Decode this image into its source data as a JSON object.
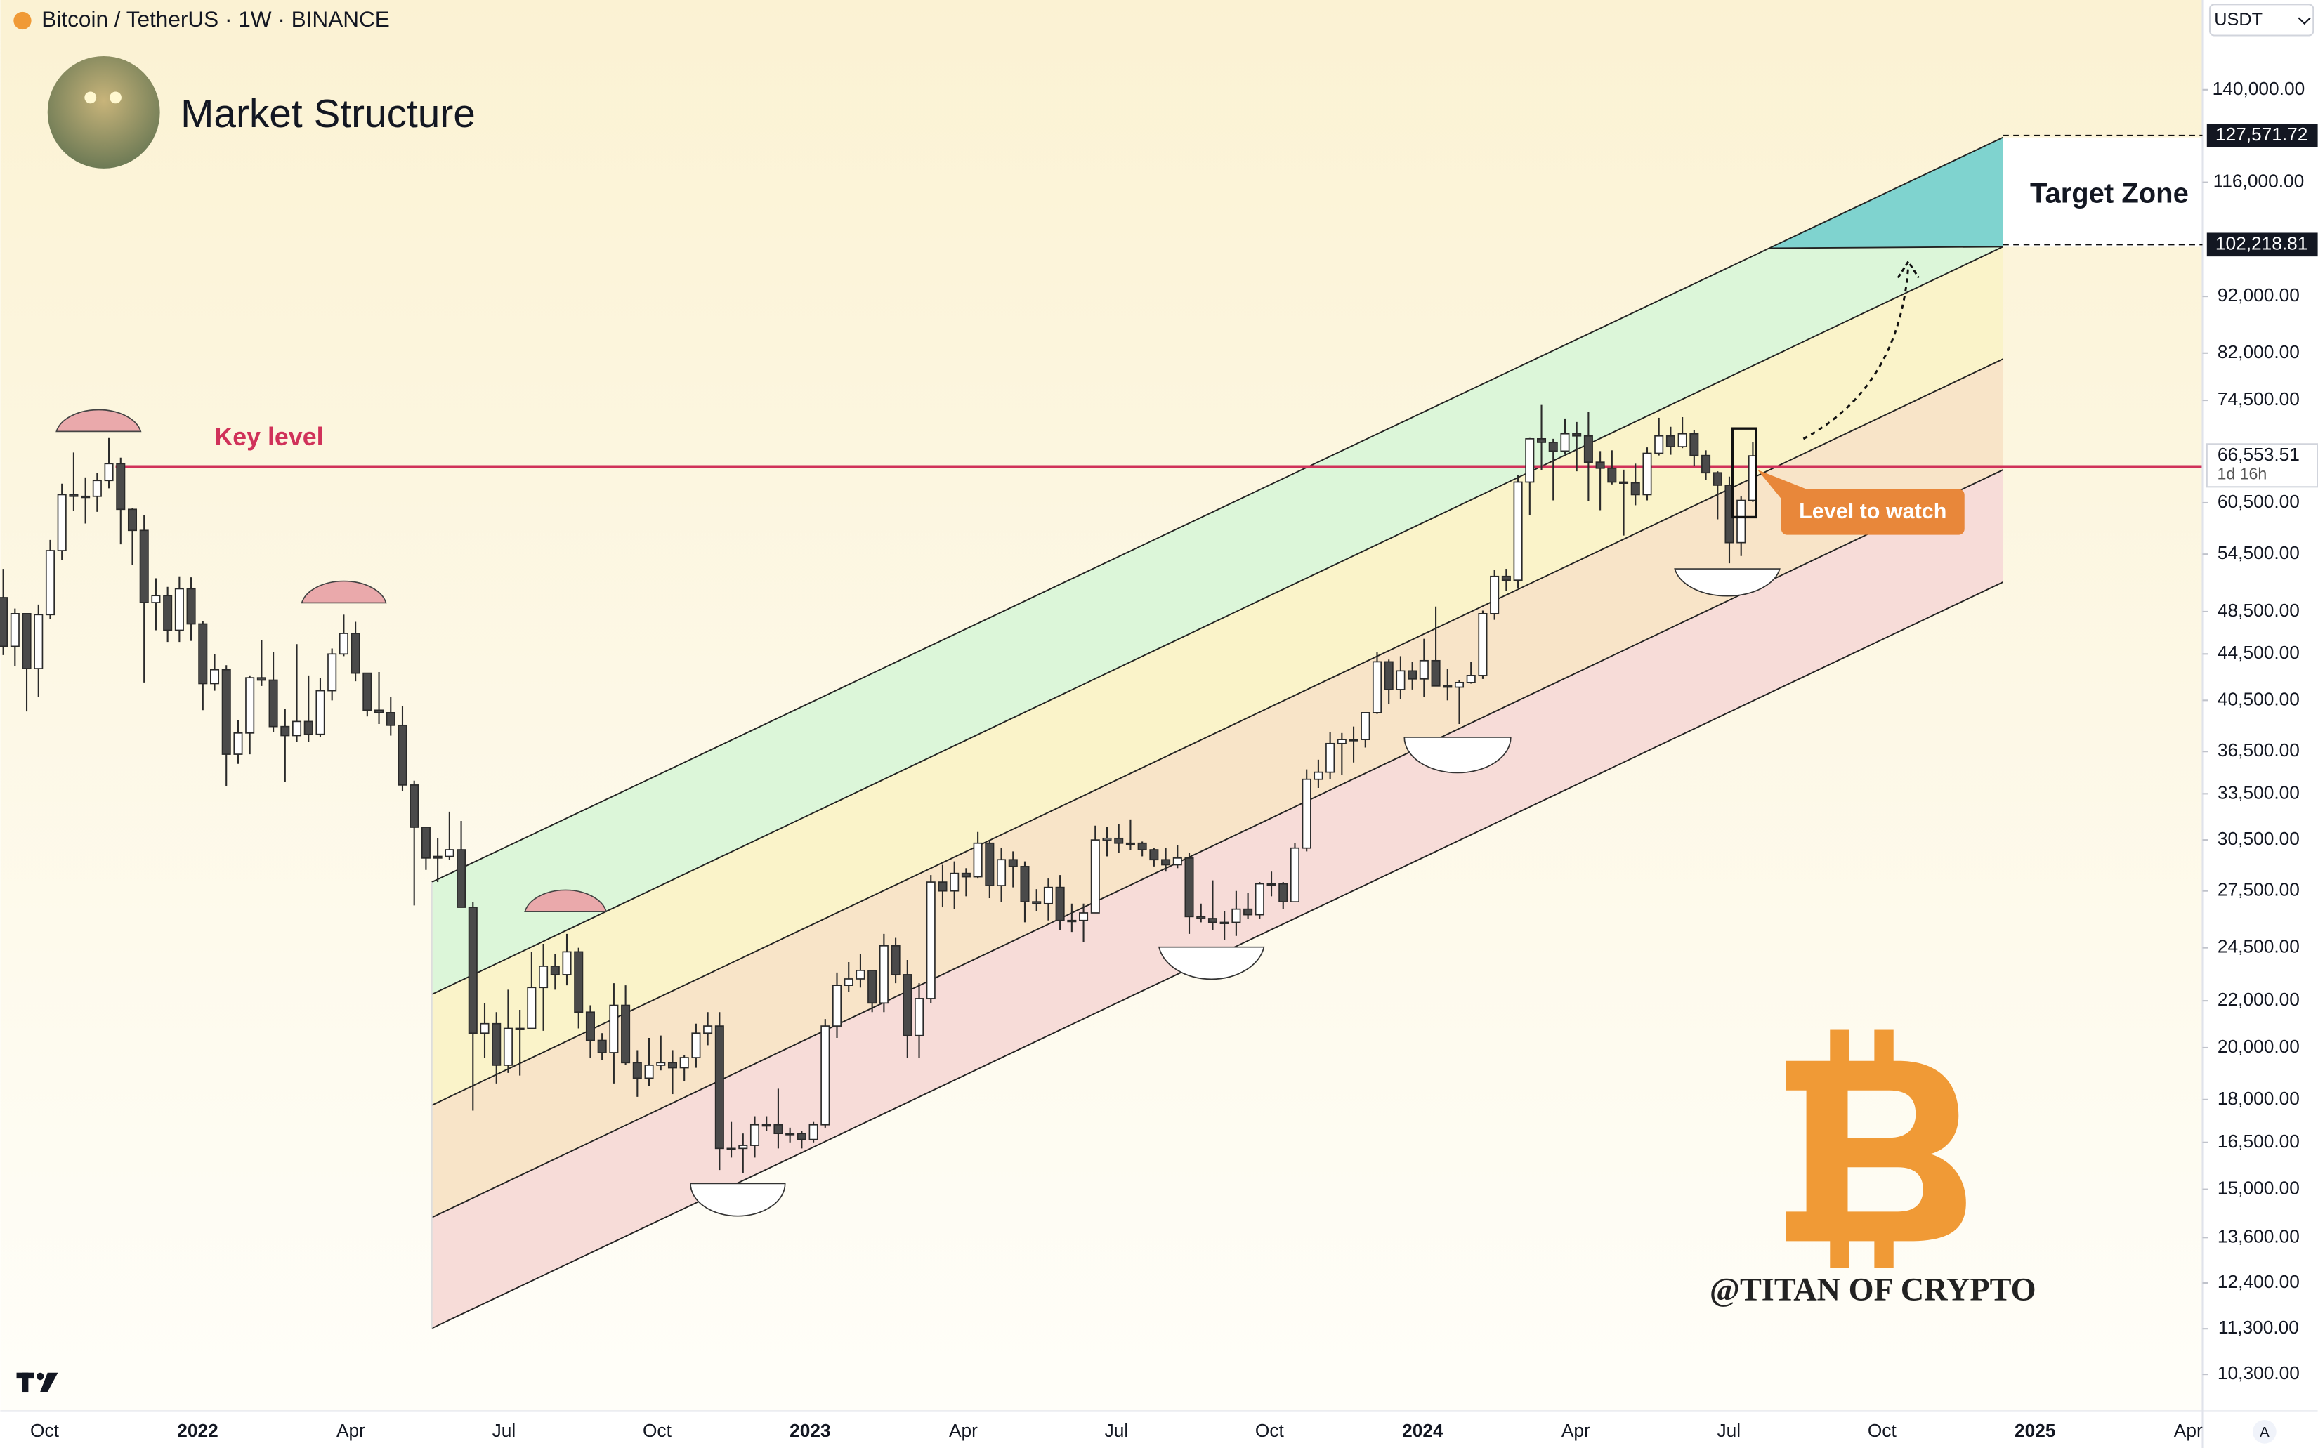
{
  "header": {
    "symbol": "Bitcoin / TetherUS · 1W · BINANCE",
    "title": "Market Structure",
    "currency": "USDT",
    "scale_mode": "A"
  },
  "chart_data": {
    "type": "candlestick",
    "log_scale": true,
    "up_color": "#ffffff",
    "down_color": "#4a4a4a",
    "ylim": [
      9560,
      168000
    ],
    "yticks": [
      {
        "value": 140000,
        "label": "140,000.00"
      },
      {
        "value": 116000,
        "label": "116,000.00"
      },
      {
        "value": 92000,
        "label": "92,000.00"
      },
      {
        "value": 82000,
        "label": "82,000.00"
      },
      {
        "value": 74500,
        "label": "74,500.00"
      },
      {
        "value": 60500,
        "label": "60,500.00"
      },
      {
        "value": 54500,
        "label": "54,500.00"
      },
      {
        "value": 48500,
        "label": "48,500.00"
      },
      {
        "value": 44500,
        "label": "44,500.00"
      },
      {
        "value": 40500,
        "label": "40,500.00"
      },
      {
        "value": 36500,
        "label": "36,500.00"
      },
      {
        "value": 33500,
        "label": "33,500.00"
      },
      {
        "value": 30500,
        "label": "30,500.00"
      },
      {
        "value": 27500,
        "label": "27,500.00"
      },
      {
        "value": 24500,
        "label": "24,500.00"
      },
      {
        "value": 22000,
        "label": "22,000.00"
      },
      {
        "value": 20000,
        "label": "20,000.00"
      },
      {
        "value": 18000,
        "label": "18,000.00"
      },
      {
        "value": 16500,
        "label": "16,500.00"
      },
      {
        "value": 15000,
        "label": "15,000.00"
      },
      {
        "value": 13600,
        "label": "13,600.00"
      },
      {
        "value": 12400,
        "label": "12,400.00"
      },
      {
        "value": 11300,
        "label": "11,300.00"
      },
      {
        "value": 10300,
        "label": "10,300.00"
      }
    ],
    "xticks": [
      "Oct",
      "2022",
      "Apr",
      "Jul",
      "Oct",
      "2023",
      "Apr",
      "Jul",
      "Oct",
      "2024",
      "Apr",
      "Jul",
      "Oct",
      "2025",
      "Apr"
    ],
    "ohlc": [
      [
        49900,
        52900,
        44400,
        45200
      ],
      [
        45200,
        48800,
        43400,
        48300
      ],
      [
        48300,
        48300,
        39600,
        43200
      ],
      [
        43200,
        49200,
        40800,
        48200
      ],
      [
        48200,
        56100,
        47800,
        54900
      ],
      [
        54900,
        62900,
        53900,
        61500
      ],
      [
        61500,
        67000,
        59500,
        61300
      ],
      [
        61300,
        63700,
        58000,
        61300
      ],
      [
        61300,
        64300,
        59400,
        63300
      ],
      [
        63300,
        69000,
        62300,
        65500
      ],
      [
        65500,
        66300,
        55600,
        59700
      ],
      [
        59700,
        59900,
        53300,
        57200
      ],
      [
        57200,
        59000,
        42000,
        49400
      ],
      [
        49400,
        51900,
        46700,
        50100
      ],
      [
        50100,
        51000,
        45600,
        46700
      ],
      [
        46700,
        52100,
        45600,
        50800
      ],
      [
        50800,
        52000,
        45700,
        47300
      ],
      [
        47300,
        47600,
        39700,
        41900
      ],
      [
        41900,
        44500,
        41300,
        43100
      ],
      [
        43100,
        43500,
        34000,
        36300
      ],
      [
        36300,
        38900,
        35600,
        37900
      ],
      [
        37900,
        42600,
        36300,
        42400
      ],
      [
        42400,
        45800,
        41700,
        42200
      ],
      [
        42200,
        44700,
        38000,
        38400
      ],
      [
        38400,
        39800,
        34300,
        37700
      ],
      [
        37700,
        45400,
        37200,
        38800
      ],
      [
        38800,
        42600,
        37200,
        37800
      ],
      [
        37800,
        42400,
        37600,
        41300
      ],
      [
        41300,
        45000,
        40500,
        44500
      ],
      [
        44500,
        48200,
        44300,
        46400
      ],
      [
        46400,
        47500,
        42100,
        42800
      ],
      [
        42800,
        42800,
        39200,
        39700
      ],
      [
        39700,
        42900,
        38600,
        39500
      ],
      [
        39500,
        40800,
        37700,
        38500
      ],
      [
        38500,
        40000,
        33700,
        34100
      ],
      [
        34100,
        34400,
        26700,
        31300
      ],
      [
        31300,
        31300,
        28700,
        29400
      ],
      [
        29400,
        30600,
        28000,
        29500
      ],
      [
        29500,
        32300,
        29300,
        29900
      ],
      [
        29900,
        31700,
        26600,
        26600
      ],
      [
        26600,
        26900,
        17600,
        20600
      ],
      [
        20600,
        21900,
        19600,
        21000
      ],
      [
        21000,
        21500,
        18600,
        19300
      ],
      [
        19300,
        22500,
        19000,
        20800
      ],
      [
        20800,
        21600,
        18900,
        20800
      ],
      [
        20800,
        24300,
        20800,
        22600
      ],
      [
        22600,
        24700,
        20700,
        23600
      ],
      [
        23600,
        24200,
        22500,
        23200
      ],
      [
        23200,
        25200,
        22700,
        24300
      ],
      [
        24300,
        24500,
        20800,
        21500
      ],
      [
        21500,
        21800,
        19600,
        20300
      ],
      [
        20300,
        20600,
        19500,
        19800
      ],
      [
        19800,
        22800,
        18600,
        21800
      ],
      [
        21800,
        22700,
        19300,
        19400
      ],
      [
        19400,
        19900,
        18100,
        18800
      ],
      [
        18800,
        20400,
        18500,
        19300
      ],
      [
        19300,
        20500,
        19100,
        19400
      ],
      [
        19400,
        19900,
        18200,
        19200
      ],
      [
        19200,
        19700,
        18700,
        19600
      ],
      [
        19600,
        21000,
        19200,
        20600
      ],
      [
        20600,
        21500,
        20100,
        20900
      ],
      [
        20900,
        21500,
        15600,
        16300
      ],
      [
        16300,
        17200,
        16000,
        16300
      ],
      [
        16300,
        16800,
        15500,
        16400
      ],
      [
        16400,
        17400,
        16000,
        17100
      ],
      [
        17100,
        17400,
        16900,
        17100
      ],
      [
        17100,
        18400,
        16300,
        16800
      ],
      [
        16800,
        17000,
        16500,
        16800
      ],
      [
        16800,
        16900,
        16300,
        16600
      ],
      [
        16600,
        17200,
        16500,
        17100
      ],
      [
        17100,
        21200,
        17000,
        20900
      ],
      [
        20900,
        23300,
        20400,
        22700
      ],
      [
        22700,
        23800,
        22400,
        23000
      ],
      [
        23000,
        24200,
        22600,
        23400
      ],
      [
        23400,
        23400,
        21500,
        21900
      ],
      [
        21900,
        25200,
        21500,
        24600
      ],
      [
        24600,
        25000,
        22800,
        23200
      ],
      [
        23200,
        23900,
        19600,
        20500
      ],
      [
        20500,
        22800,
        19600,
        22100
      ],
      [
        22100,
        28400,
        21900,
        28000
      ],
      [
        28000,
        29000,
        26600,
        27500
      ],
      [
        27500,
        29200,
        26500,
        28500
      ],
      [
        28500,
        28800,
        27200,
        28300
      ],
      [
        28300,
        31000,
        28200,
        30300
      ],
      [
        30300,
        30500,
        27100,
        27800
      ],
      [
        27800,
        30000,
        26900,
        29300
      ],
      [
        29300,
        29800,
        27700,
        28900
      ],
      [
        28900,
        29200,
        25800,
        26900
      ],
      [
        26900,
        27600,
        26400,
        26800
      ],
      [
        26800,
        28200,
        25900,
        27700
      ],
      [
        27700,
        28400,
        25400,
        25900
      ],
      [
        25900,
        26800,
        25300,
        25900
      ],
      [
        25900,
        26800,
        24800,
        26300
      ],
      [
        26300,
        31400,
        26300,
        30500
      ],
      [
        30500,
        31300,
        29500,
        30600
      ],
      [
        30600,
        31500,
        29700,
        30300
      ],
      [
        30300,
        31800,
        29900,
        30300
      ],
      [
        30300,
        30400,
        29500,
        29900
      ],
      [
        29900,
        30000,
        28900,
        29300
      ],
      [
        29300,
        30000,
        28600,
        29000
      ],
      [
        29000,
        30200,
        28800,
        29400
      ],
      [
        29400,
        29700,
        25200,
        26100
      ],
      [
        26100,
        26800,
        25800,
        26000
      ],
      [
        26000,
        28100,
        25400,
        25800
      ],
      [
        25800,
        26400,
        24900,
        25800
      ],
      [
        25800,
        27500,
        25100,
        26500
      ],
      [
        26500,
        27400,
        26000,
        26200
      ],
      [
        26200,
        28000,
        26000,
        27900
      ],
      [
        27900,
        28600,
        27200,
        27900
      ],
      [
        27900,
        28000,
        26500,
        26900
      ],
      [
        26900,
        30300,
        26900,
        30000
      ],
      [
        30000,
        35200,
        29800,
        34500
      ],
      [
        34500,
        35900,
        33900,
        35000
      ],
      [
        35000,
        38000,
        34500,
        37100
      ],
      [
        37100,
        37900,
        34800,
        37400
      ],
      [
        37400,
        38400,
        35700,
        37400
      ],
      [
        37400,
        39500,
        36800,
        39500
      ],
      [
        39500,
        44700,
        39400,
        43800
      ],
      [
        43800,
        44000,
        40200,
        41400
      ],
      [
        41400,
        44300,
        40600,
        43000
      ],
      [
        43000,
        43800,
        41400,
        42300
      ],
      [
        42300,
        45900,
        40800,
        43900
      ],
      [
        43900,
        49000,
        41700,
        41700
      ],
      [
        41700,
        43200,
        40500,
        41600
      ],
      [
        41600,
        42200,
        38600,
        42000
      ],
      [
        42000,
        43800,
        41900,
        42600
      ],
      [
        42600,
        48600,
        42300,
        48300
      ],
      [
        48300,
        52800,
        47700,
        52100
      ],
      [
        52100,
        52900,
        50600,
        51700
      ],
      [
        51700,
        64000,
        50900,
        63100
      ],
      [
        63100,
        69000,
        59000,
        68900
      ],
      [
        68900,
        73800,
        64600,
        68400
      ],
      [
        68400,
        68900,
        60800,
        67200
      ],
      [
        67200,
        71800,
        66800,
        69600
      ],
      [
        69600,
        71300,
        64500,
        69300
      ],
      [
        69300,
        72800,
        60700,
        65700
      ],
      [
        65700,
        67200,
        59600,
        64900
      ],
      [
        64900,
        67300,
        62800,
        63100
      ],
      [
        63100,
        64700,
        56600,
        63000
      ],
      [
        63000,
        65500,
        60200,
        61500
      ],
      [
        61500,
        67700,
        60800,
        66900
      ],
      [
        66900,
        71900,
        66600,
        69300
      ],
      [
        69300,
        70600,
        66700,
        67800
      ],
      [
        67800,
        72000,
        67600,
        69600
      ],
      [
        69600,
        70100,
        65200,
        66600
      ],
      [
        66600,
        67300,
        63400,
        64300
      ],
      [
        64300,
        64500,
        58500,
        62700
      ],
      [
        62700,
        63800,
        53500,
        55800
      ],
      [
        55800,
        61300,
        54300,
        60800
      ],
      [
        60800,
        68400,
        60600,
        66553.51
      ]
    ],
    "last_price": {
      "value": 66553.51,
      "label": "66,553.51"
    },
    "countdown": "1d 16h",
    "key_level": {
      "value": 65100,
      "label": "Key level",
      "color": "#d0325a"
    },
    "target_zone": {
      "label": "Target Zone",
      "high": {
        "value": 127571.72,
        "label": "127,571.72"
      },
      "low": {
        "value": 102218.81,
        "label": "102,218.81"
      }
    },
    "annotation": "Level to watch",
    "watermark": "@TITAN OF CRYPTO"
  }
}
